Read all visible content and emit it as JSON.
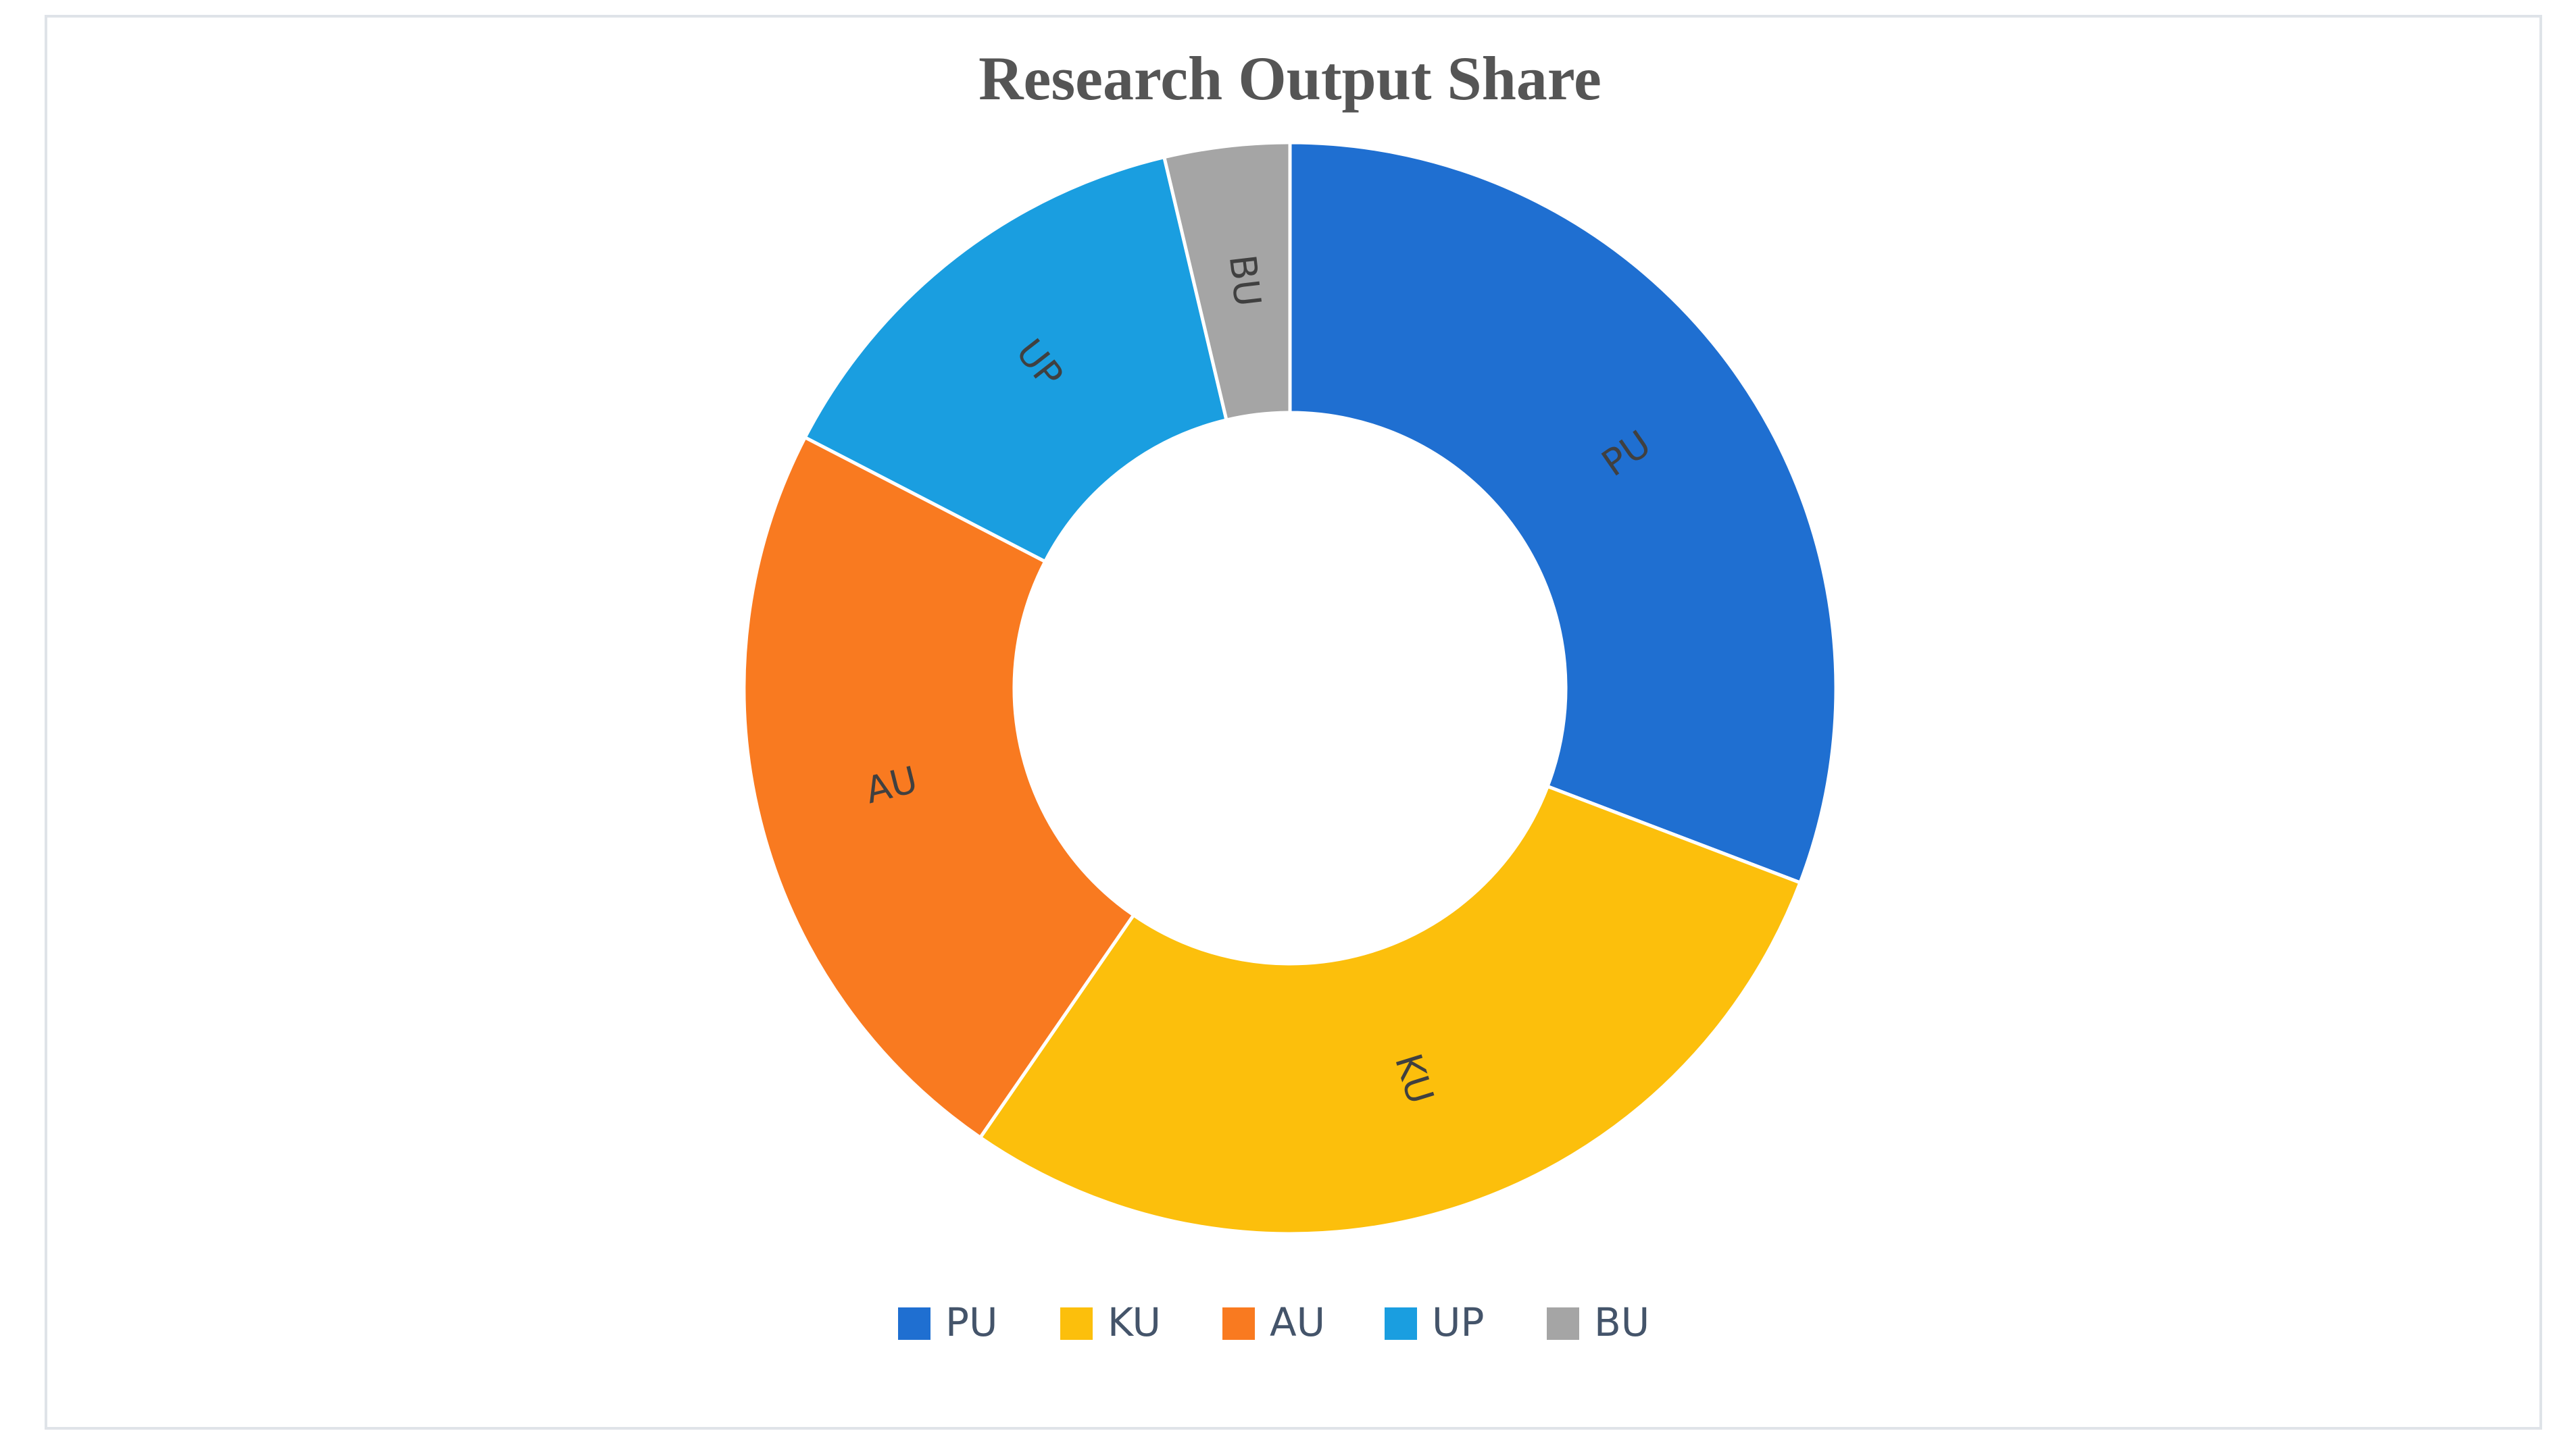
{
  "chart_data": {
    "type": "donut",
    "title": "Research Output Share",
    "categories": [
      "PU",
      "KU",
      "AU",
      "UP",
      "BU"
    ],
    "values": [
      30.8,
      28.8,
      23,
      13.7,
      3.7
    ],
    "colors": [
      "#1f6fd1",
      "#fcbf0c",
      "#f97a20",
      "#1a9ee0",
      "#a5a5a5"
    ],
    "legend": "bottom"
  }
}
